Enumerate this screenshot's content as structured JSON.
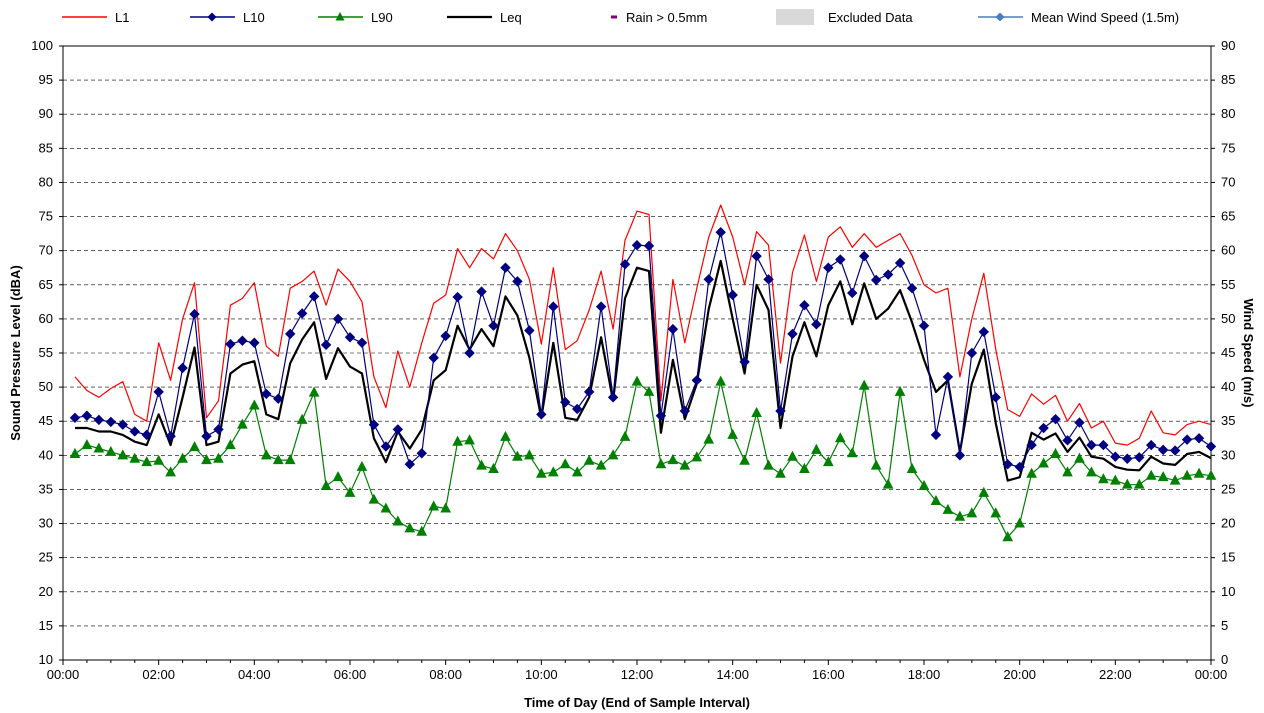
{
  "chart_data": {
    "type": "line",
    "xlabel": "Time of Day (End of Sample Interval)",
    "ylabel": "Sound Pressure Level (dBA)",
    "y2label": "Wind Speed (m/s)",
    "ylim": [
      10,
      100
    ],
    "y2lim": [
      0,
      90
    ],
    "grid": true,
    "legend": "top",
    "x_tick_labels": [
      "00:00",
      "02:00",
      "04:00",
      "06:00",
      "08:00",
      "10:00",
      "12:00",
      "14:00",
      "16:00",
      "18:00",
      "20:00",
      "22:00",
      "00:00"
    ],
    "x_hours": [
      0.25,
      0.5,
      0.75,
      1,
      1.25,
      1.5,
      1.75,
      2,
      2.25,
      2.5,
      2.75,
      3,
      3.25,
      3.5,
      3.75,
      4,
      4.25,
      4.5,
      4.75,
      5,
      5.25,
      5.5,
      5.75,
      6,
      6.25,
      6.5,
      6.75,
      7,
      7.25,
      7.5,
      7.75,
      8,
      8.25,
      8.5,
      8.75,
      9,
      9.25,
      9.5,
      9.75,
      10,
      10.25,
      10.5,
      10.75,
      11,
      11.25,
      11.5,
      11.75,
      12,
      12.25,
      12.5,
      12.75,
      13,
      13.25,
      13.5,
      13.75,
      14,
      14.25,
      14.5,
      14.75,
      15,
      15.25,
      15.5,
      15.75,
      16,
      16.25,
      16.5,
      16.75,
      17,
      17.25,
      17.5,
      17.75,
      18,
      18.25,
      18.5,
      18.75,
      19,
      19.25,
      19.5,
      19.75,
      20,
      20.25,
      20.5,
      20.75,
      21,
      21.25,
      21.5,
      21.75,
      22,
      22.25,
      22.5,
      22.75,
      23,
      23.25,
      23.5,
      23.75,
      24
    ],
    "series": [
      {
        "name": "L1",
        "color": "#ff0000",
        "marker": "none",
        "values": [
          51.5,
          49.5,
          48.5,
          49.8,
          50.8,
          46,
          45,
          56.5,
          51,
          60,
          65.3,
          45.5,
          48,
          62,
          63,
          65.3,
          56,
          54.5,
          64.5,
          65.5,
          67,
          62,
          67.3,
          65.5,
          62.5,
          51.5,
          47,
          55.3,
          50,
          56.5,
          62.3,
          63.5,
          70.3,
          67.5,
          70.3,
          68.8,
          72.5,
          70,
          65.8,
          56.3,
          67.5,
          55.5,
          56.8,
          61.3,
          67,
          58.5,
          71.5,
          75.8,
          75.3,
          48,
          65.8,
          56.5,
          64.5,
          72,
          76.7,
          72,
          65,
          72.8,
          70.8,
          53.5,
          66.8,
          72.3,
          65.5,
          72,
          73.5,
          70.5,
          72.5,
          70.5,
          71.5,
          72.5,
          69.3,
          65,
          63.8,
          64.5,
          51.5,
          60,
          66.7,
          55.5,
          46.7,
          45.7,
          49,
          47.5,
          48.8,
          45,
          47.6,
          44,
          45,
          41.8,
          41.5,
          42.5,
          46.5,
          43.3,
          43,
          44.5,
          45,
          44.5
        ]
      },
      {
        "name": "L10",
        "color": "#000080",
        "marker": "diamond",
        "values": [
          45.5,
          45.8,
          45.2,
          44.9,
          44.5,
          43.5,
          43,
          49.3,
          42.8,
          52.8,
          60.7,
          42.8,
          43.8,
          56.3,
          56.8,
          56.5,
          49,
          48.3,
          57.8,
          60.8,
          63.3,
          56.2,
          60,
          57.3,
          56.5,
          44.5,
          41.3,
          43.8,
          38.7,
          40.3,
          54.3,
          57.5,
          63.2,
          55,
          64,
          59,
          67.5,
          65.5,
          58.3,
          46,
          61.8,
          47.8,
          46.8,
          49.3,
          61.8,
          48.5,
          68,
          70.8,
          70.7,
          45.8,
          58.5,
          46.5,
          51,
          65.8,
          72.7,
          63.5,
          53.7,
          69.2,
          65.8,
          46.5,
          57.8,
          62,
          59.2,
          67.5,
          68.7,
          63.8,
          69.2,
          65.7,
          66.5,
          68.2,
          64.5,
          59,
          43,
          51.5,
          40,
          55,
          58.1,
          48.5,
          38.7,
          38.3,
          41.5,
          44,
          45.3,
          42.2,
          44.8,
          41.5,
          41.5,
          39.8,
          39.5,
          39.7,
          41.5,
          40.8,
          40.7,
          42.3,
          42.5,
          41.3
        ]
      },
      {
        "name": "L90",
        "color": "#008000",
        "marker": "triangle",
        "values": [
          40.2,
          41.5,
          41,
          40.5,
          40,
          39.5,
          39,
          39.2,
          37.5,
          39.5,
          41.2,
          39.3,
          39.5,
          41.5,
          44.5,
          47.3,
          40,
          39.3,
          39.3,
          45.2,
          49.2,
          35.5,
          36.8,
          34.5,
          38.3,
          33.5,
          32.2,
          30.3,
          29.3,
          28.8,
          32.5,
          32.2,
          42,
          42.2,
          38.5,
          38,
          42.7,
          39.8,
          40,
          37.3,
          37.5,
          38.7,
          37.5,
          39.2,
          38.5,
          40,
          42.7,
          50.8,
          49.3,
          38.7,
          39.3,
          38.5,
          39.7,
          42.3,
          50.8,
          43,
          39.2,
          46.2,
          38.5,
          37.3,
          39.8,
          38,
          40.8,
          39,
          42.5,
          40.3,
          50.2,
          38.5,
          35.7,
          49.3,
          38,
          35.5,
          33.3,
          32,
          31,
          31.5,
          34.5,
          31.5,
          28,
          30,
          37.3,
          38.8,
          40.2,
          37.5,
          39.5,
          37.5,
          36.5,
          36.3,
          35.7,
          35.7,
          37,
          36.8,
          36.3,
          37,
          37.3,
          37
        ]
      },
      {
        "name": "Leq",
        "color": "#000000",
        "marker": "none",
        "values": [
          44,
          44,
          43.5,
          43.5,
          43,
          42,
          41.5,
          46,
          41.5,
          48.5,
          55.8,
          41.5,
          42,
          52,
          53.3,
          53.8,
          46,
          45.3,
          53.5,
          57,
          59.5,
          51.2,
          55.7,
          53,
          52,
          42.5,
          39,
          43.5,
          41,
          43.8,
          51,
          52.5,
          59,
          55.5,
          58.5,
          56,
          63.3,
          60.5,
          54.3,
          45.5,
          56.5,
          45.5,
          45.2,
          48.5,
          57.3,
          48,
          63,
          67.5,
          67,
          43.3,
          54,
          45.3,
          50.5,
          61.5,
          68.5,
          60,
          52,
          65,
          61.3,
          44,
          54.5,
          59.5,
          54.5,
          62,
          65.5,
          59.2,
          65.2,
          60,
          61.5,
          64.2,
          59.5,
          54,
          49.3,
          51,
          40.5,
          50.5,
          55.5,
          44.7,
          36.3,
          36.8,
          43.3,
          42.3,
          43.2,
          40.5,
          42.6,
          39.8,
          39.5,
          38.3,
          37.9,
          37.8,
          39.8,
          38.8,
          38.6,
          40.2,
          40.5,
          39.6
        ]
      },
      {
        "name": "Rain > 0.5mm",
        "color": "#800080",
        "marker": "none",
        "values": []
      },
      {
        "name": "Excluded Data",
        "color": "#d9d9d9",
        "marker": "none",
        "values": []
      },
      {
        "name": "Mean Wind Speed (1.5m)",
        "color": "#4a7ebb",
        "marker": "diamond",
        "values": []
      }
    ]
  }
}
